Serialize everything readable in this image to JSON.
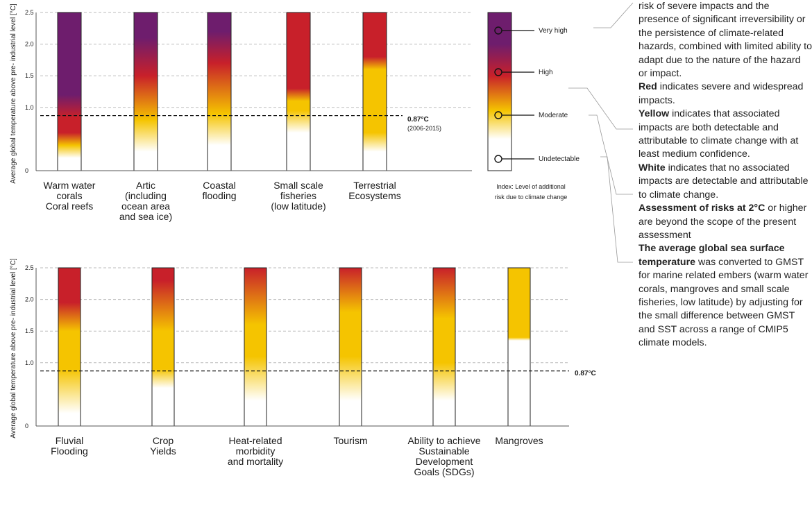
{
  "chart_data": [
    {
      "type": "heatmap",
      "ylabel": "Average global temperature above pre- industrial level [°C]",
      "yticks": [
        "0",
        "1.0",
        "1.5",
        "2.0",
        "2.5"
      ],
      "ytick_values": [
        0,
        1.0,
        1.5,
        2.0,
        2.5
      ],
      "ylim": [
        0,
        2.5
      ],
      "reference": {
        "label": "0.87°C",
        "sublabel": "(2006-2015)",
        "value": 0.87
      },
      "categories": [
        {
          "id": "warm-water-corals",
          "lines": [
            "Warm water",
            "corals",
            "Coral reefs"
          ],
          "stops": [
            [
              0,
              "white"
            ],
            [
              0.2,
              "white"
            ],
            [
              0.4,
              "yellow"
            ],
            [
              0.6,
              "red"
            ],
            [
              0.85,
              "red"
            ],
            [
              1.2,
              "purple"
            ],
            [
              2.5,
              "purple"
            ]
          ]
        },
        {
          "id": "artic",
          "lines": [
            "Artic",
            "(including",
            "ocean area",
            "and sea ice)"
          ],
          "stops": [
            [
              0,
              "white"
            ],
            [
              0.3,
              "white"
            ],
            [
              0.8,
              "yellow"
            ],
            [
              1.5,
              "red"
            ],
            [
              2.1,
              "purple"
            ],
            [
              2.5,
              "purple"
            ]
          ]
        },
        {
          "id": "coastal-flooding",
          "lines": [
            "Coastal",
            "flooding"
          ],
          "stops": [
            [
              0,
              "white"
            ],
            [
              0.4,
              "white"
            ],
            [
              0.9,
              "yellow"
            ],
            [
              1.7,
              "red"
            ],
            [
              2.2,
              "purple"
            ],
            [
              2.5,
              "purple"
            ]
          ]
        },
        {
          "id": "small-scale-fisheries",
          "lines": [
            "Small scale",
            "fisheries",
            "(low latitude)"
          ],
          "stops": [
            [
              0,
              "white"
            ],
            [
              0.6,
              "white"
            ],
            [
              0.95,
              "yellow"
            ],
            [
              1.1,
              "yellow"
            ],
            [
              1.3,
              "red"
            ],
            [
              2.2,
              "red"
            ],
            [
              2.5,
              "red"
            ]
          ]
        },
        {
          "id": "terrestrial-ecosystems",
          "lines": [
            "Terrestrial",
            "Ecosystems"
          ],
          "stops": [
            [
              0,
              "white"
            ],
            [
              0.3,
              "white"
            ],
            [
              0.6,
              "yellow"
            ],
            [
              1.6,
              "yellow"
            ],
            [
              1.8,
              "red"
            ],
            [
              2.5,
              "red"
            ]
          ]
        }
      ]
    },
    {
      "type": "heatmap",
      "ylabel": "Average global temperature above pre- industrial level [°C]",
      "yticks": [
        "0",
        "1.0",
        "1.5",
        "2.0",
        "2.5"
      ],
      "ytick_values": [
        0,
        1.0,
        1.5,
        2.0,
        2.5
      ],
      "ylim": [
        0,
        2.5
      ],
      "reference": {
        "label": "0.87°C",
        "value": 0.87
      },
      "categories": [
        {
          "id": "fluvial-flooding",
          "lines": [
            "Fluvial",
            "Flooding"
          ],
          "stops": [
            [
              0,
              "white"
            ],
            [
              0.2,
              "white"
            ],
            [
              0.9,
              "yellow"
            ],
            [
              1.5,
              "yellow"
            ],
            [
              1.95,
              "red"
            ],
            [
              2.5,
              "red"
            ]
          ]
        },
        {
          "id": "crop-yields",
          "lines": [
            "Crop",
            "Yields"
          ],
          "stops": [
            [
              0,
              "white"
            ],
            [
              0.6,
              "white"
            ],
            [
              0.9,
              "yellow"
            ],
            [
              1.5,
              "yellow"
            ],
            [
              2.3,
              "red"
            ],
            [
              2.5,
              "red"
            ]
          ]
        },
        {
          "id": "heat-related",
          "lines": [
            "Heat-related",
            "morbidity",
            "and mortality"
          ],
          "stops": [
            [
              0,
              "white"
            ],
            [
              0.4,
              "white"
            ],
            [
              1.1,
              "yellow"
            ],
            [
              1.6,
              "yellow"
            ],
            [
              2.5,
              "red"
            ]
          ]
        },
        {
          "id": "tourism",
          "lines": [
            "Tourism"
          ],
          "stops": [
            [
              0,
              "white"
            ],
            [
              0.4,
              "white"
            ],
            [
              1.1,
              "yellow"
            ],
            [
              1.8,
              "yellow"
            ],
            [
              2.5,
              "red"
            ]
          ]
        },
        {
          "id": "sdgs",
          "lines": [
            "Ability to achieve",
            "Sustainable",
            "Development",
            "Goals (SDGs)"
          ],
          "stops": [
            [
              0,
              "white"
            ],
            [
              0.4,
              "white"
            ],
            [
              1.0,
              "yellow"
            ],
            [
              1.7,
              "yellow"
            ],
            [
              2.5,
              "red"
            ]
          ]
        },
        {
          "id": "mangroves",
          "lines": [
            "Mangroves"
          ],
          "stops": [
            [
              0,
              "white"
            ],
            [
              1.35,
              "white"
            ],
            [
              1.4,
              "yellow"
            ],
            [
              2.3,
              "yellow"
            ],
            [
              2.5,
              "yellow"
            ]
          ]
        }
      ]
    }
  ],
  "colors": {
    "white": "#ffffff",
    "yellow": "#f5c400",
    "red": "#c8202a",
    "purple": "#6e1d6d",
    "axis": "#555555",
    "grid": "#bbbbbb"
  },
  "legend": {
    "levels": [
      "Very high",
      "High",
      "Moderate",
      "Undetectable"
    ],
    "caption_lines": [
      "Index: Level of additional",
      "risk due to climate change"
    ]
  },
  "side_text": {
    "p1": "risk of severe impacts and the presence of significant irreversibility or the persistence of climate-related hazards, combined with limited ability to adapt due to the nature of the hazard or impact.",
    "p2_bold": "Red",
    "p2": " indicates severe and widespread impacts.",
    "p3_bold": "Yellow",
    "p3": " indicates that associated impacts are both detectable and attributable to climate change with at least medium confidence.",
    "p4_bold": "White",
    "p4": " indicates that no associated impacts are detectable and attributable to climate change.",
    "p5_bold": "Assessment of risks at 2°C",
    "p5": " or higher are beyond the scope of the present assessment",
    "p6_bold": "The average global sea surface temperature",
    "p6": " was converted to GMST for marine related embers (warm water corals, mangroves and small scale fisheries, low latitude) by adjusting for the small difference between GMST and SST across a range of CMIP5 climate models."
  }
}
